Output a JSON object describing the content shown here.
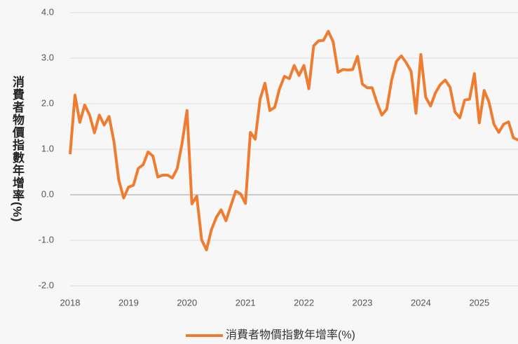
{
  "chart_data": {
    "type": "line",
    "y_label": "消費者物價指數年增率(%)",
    "categories": [
      "2018",
      null,
      null,
      null,
      null,
      null,
      null,
      null,
      null,
      null,
      null,
      null,
      "2019",
      null,
      null,
      null,
      null,
      null,
      null,
      null,
      null,
      null,
      null,
      null,
      "2020",
      null,
      null,
      null,
      null,
      null,
      null,
      null,
      null,
      null,
      null,
      null,
      "2021",
      null,
      null,
      null,
      null,
      null,
      null,
      null,
      null,
      null,
      null,
      null,
      "2022",
      null,
      null,
      null,
      null,
      null,
      null,
      null,
      null,
      null,
      null,
      null,
      "2023",
      null,
      null,
      null,
      null,
      null,
      null,
      null,
      null,
      null,
      null,
      null,
      "2024",
      null,
      null,
      null,
      null,
      null,
      null,
      null,
      null,
      null,
      null,
      null,
      "2025",
      null,
      null,
      null,
      null,
      null,
      null,
      null,
      null
    ],
    "series": [
      {
        "name": "消費者物價指數年增率(%)",
        "color": "#ee7d31",
        "values": [
          0.89,
          2.19,
          1.59,
          1.97,
          1.75,
          1.36,
          1.75,
          1.53,
          1.72,
          1.17,
          0.32,
          -0.07,
          0.17,
          0.21,
          0.58,
          0.66,
          0.94,
          0.85,
          0.39,
          0.43,
          0.43,
          0.37,
          0.58,
          1.14,
          1.85,
          -0.2,
          -0.03,
          -0.99,
          -1.21,
          -0.77,
          -0.5,
          -0.33,
          -0.57,
          -0.24,
          0.08,
          0.02,
          -0.19,
          1.37,
          1.22,
          2.1,
          2.45,
          1.85,
          1.92,
          2.33,
          2.6,
          2.55,
          2.84,
          2.62,
          2.84,
          2.33,
          3.27,
          3.38,
          3.39,
          3.59,
          3.36,
          2.69,
          2.75,
          2.74,
          2.75,
          3.04,
          2.43,
          2.35,
          2.35,
          2.02,
          1.75,
          1.88,
          2.52,
          2.93,
          3.05,
          2.9,
          2.71,
          1.79,
          3.08,
          2.14,
          1.95,
          2.24,
          2.42,
          2.52,
          2.36,
          1.82,
          1.69,
          2.08,
          2.1,
          2.66,
          1.58,
          2.29,
          2.03,
          1.55,
          1.37,
          1.55,
          1.6,
          1.25,
          1.2
        ]
      }
    ],
    "ylim": [
      -2,
      4
    ],
    "yticks": [
      {
        "value": -2,
        "label": "-2.0"
      },
      {
        "value": -1,
        "label": "-1.0"
      },
      {
        "value": 0,
        "label": "0.0"
      },
      {
        "value": 1,
        "label": "1.0"
      },
      {
        "value": 2,
        "label": "2.0"
      },
      {
        "value": 3,
        "label": "3.0"
      },
      {
        "value": 4,
        "label": "4.0"
      }
    ],
    "grid": true
  }
}
